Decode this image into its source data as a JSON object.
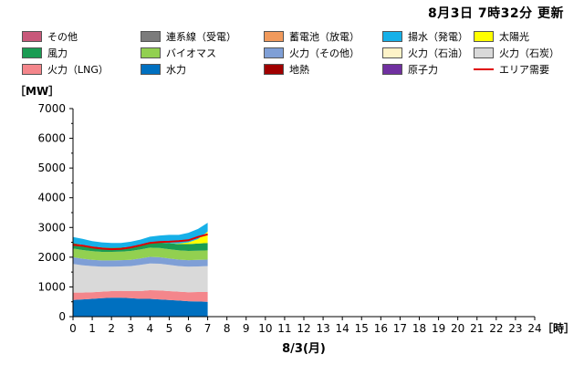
{
  "header": {
    "updated_text": "8月3日 7時32分 更新"
  },
  "legend": [
    {
      "label": "その他",
      "color": "#c8587a",
      "kind": "box"
    },
    {
      "label": "連系線（受電）",
      "color": "#7b7b7b",
      "kind": "box"
    },
    {
      "label": "蓄電池（放電）",
      "color": "#f19a5c",
      "kind": "box"
    },
    {
      "label": "揚水（発電）",
      "color": "#16b0e8",
      "kind": "box"
    },
    {
      "label": "太陽光",
      "color": "#ffff00",
      "kind": "box"
    },
    {
      "label": "風力",
      "color": "#1a9c53",
      "kind": "box"
    },
    {
      "label": "バイオマス",
      "color": "#92d050",
      "kind": "box"
    },
    {
      "label": "火力（その他）",
      "color": "#7f9fd6",
      "kind": "box"
    },
    {
      "label": "火力（石油）",
      "color": "#fdf3c8",
      "kind": "box"
    },
    {
      "label": "火力（石炭）",
      "color": "#d9d9d9",
      "kind": "box"
    },
    {
      "label": "火力（LNG）",
      "color": "#f4868b",
      "kind": "box"
    },
    {
      "label": "水力",
      "color": "#0070c0",
      "kind": "box"
    },
    {
      "label": "地熱",
      "color": "#a00000",
      "kind": "box"
    },
    {
      "label": "原子力",
      "color": "#7030a0",
      "kind": "box"
    },
    {
      "label": "エリア需要",
      "color": "#e00000",
      "kind": "line"
    }
  ],
  "chart_data": {
    "type": "area",
    "ylabel": "［MW］",
    "xlabel": "8/3(月)",
    "x_unit": "［時］",
    "ylim": [
      0,
      7000
    ],
    "y_ticks": [
      0,
      1000,
      2000,
      3000,
      4000,
      5000,
      6000,
      7000
    ],
    "x_ticks": [
      0,
      1,
      2,
      3,
      4,
      5,
      6,
      7,
      8,
      9,
      10,
      11,
      12,
      13,
      14,
      15,
      16,
      17,
      18,
      19,
      20,
      21,
      22,
      23,
      24
    ],
    "grid": false,
    "x": [
      0,
      0.5,
      1,
      1.5,
      2,
      2.5,
      3,
      3.5,
      4,
      4.5,
      5,
      5.5,
      6,
      6.5,
      7
    ],
    "stacked_series": [
      {
        "name": "水力",
        "color": "#0070c0",
        "values": [
          560,
          580,
          600,
          620,
          640,
          640,
          620,
          600,
          600,
          580,
          560,
          540,
          520,
          510,
          500
        ]
      },
      {
        "name": "火力（LNG）",
        "color": "#f4868b",
        "values": [
          250,
          230,
          220,
          220,
          220,
          230,
          240,
          260,
          290,
          300,
          300,
          300,
          300,
          320,
          330
        ]
      },
      {
        "name": "火力（石炭）",
        "color": "#d9d9d9",
        "values": [
          960,
          920,
          880,
          840,
          820,
          820,
          840,
          880,
          900,
          900,
          880,
          860,
          860,
          860,
          870
        ]
      },
      {
        "name": "火力（その他）",
        "color": "#7f9fd6",
        "values": [
          230,
          220,
          210,
          210,
          210,
          210,
          210,
          220,
          220,
          220,
          220,
          220,
          220,
          220,
          220
        ]
      },
      {
        "name": "バイオマス",
        "color": "#92d050",
        "values": [
          290,
          290,
          290,
          290,
          290,
          290,
          300,
          300,
          310,
          310,
          310,
          310,
          310,
          310,
          310
        ]
      },
      {
        "name": "風力",
        "color": "#1a9c53",
        "values": [
          190,
          180,
          160,
          150,
          140,
          140,
          140,
          150,
          160,
          180,
          200,
          210,
          230,
          240,
          250
        ]
      },
      {
        "name": "太陽光",
        "color": "#ffff00",
        "values": [
          0,
          0,
          0,
          0,
          0,
          0,
          0,
          0,
          0,
          0,
          0,
          20,
          60,
          150,
          380
        ]
      },
      {
        "name": "揚水（発電）",
        "color": "#16b0e8",
        "values": [
          200,
          200,
          180,
          170,
          160,
          150,
          170,
          180,
          210,
          240,
          280,
          290,
          320,
          340,
          300
        ]
      }
    ],
    "demand": {
      "name": "エリア需要",
      "color": "#e00000",
      "values": [
        2420,
        2390,
        2330,
        2290,
        2270,
        2280,
        2330,
        2400,
        2480,
        2510,
        2520,
        2540,
        2570,
        2680,
        2770
      ]
    }
  }
}
